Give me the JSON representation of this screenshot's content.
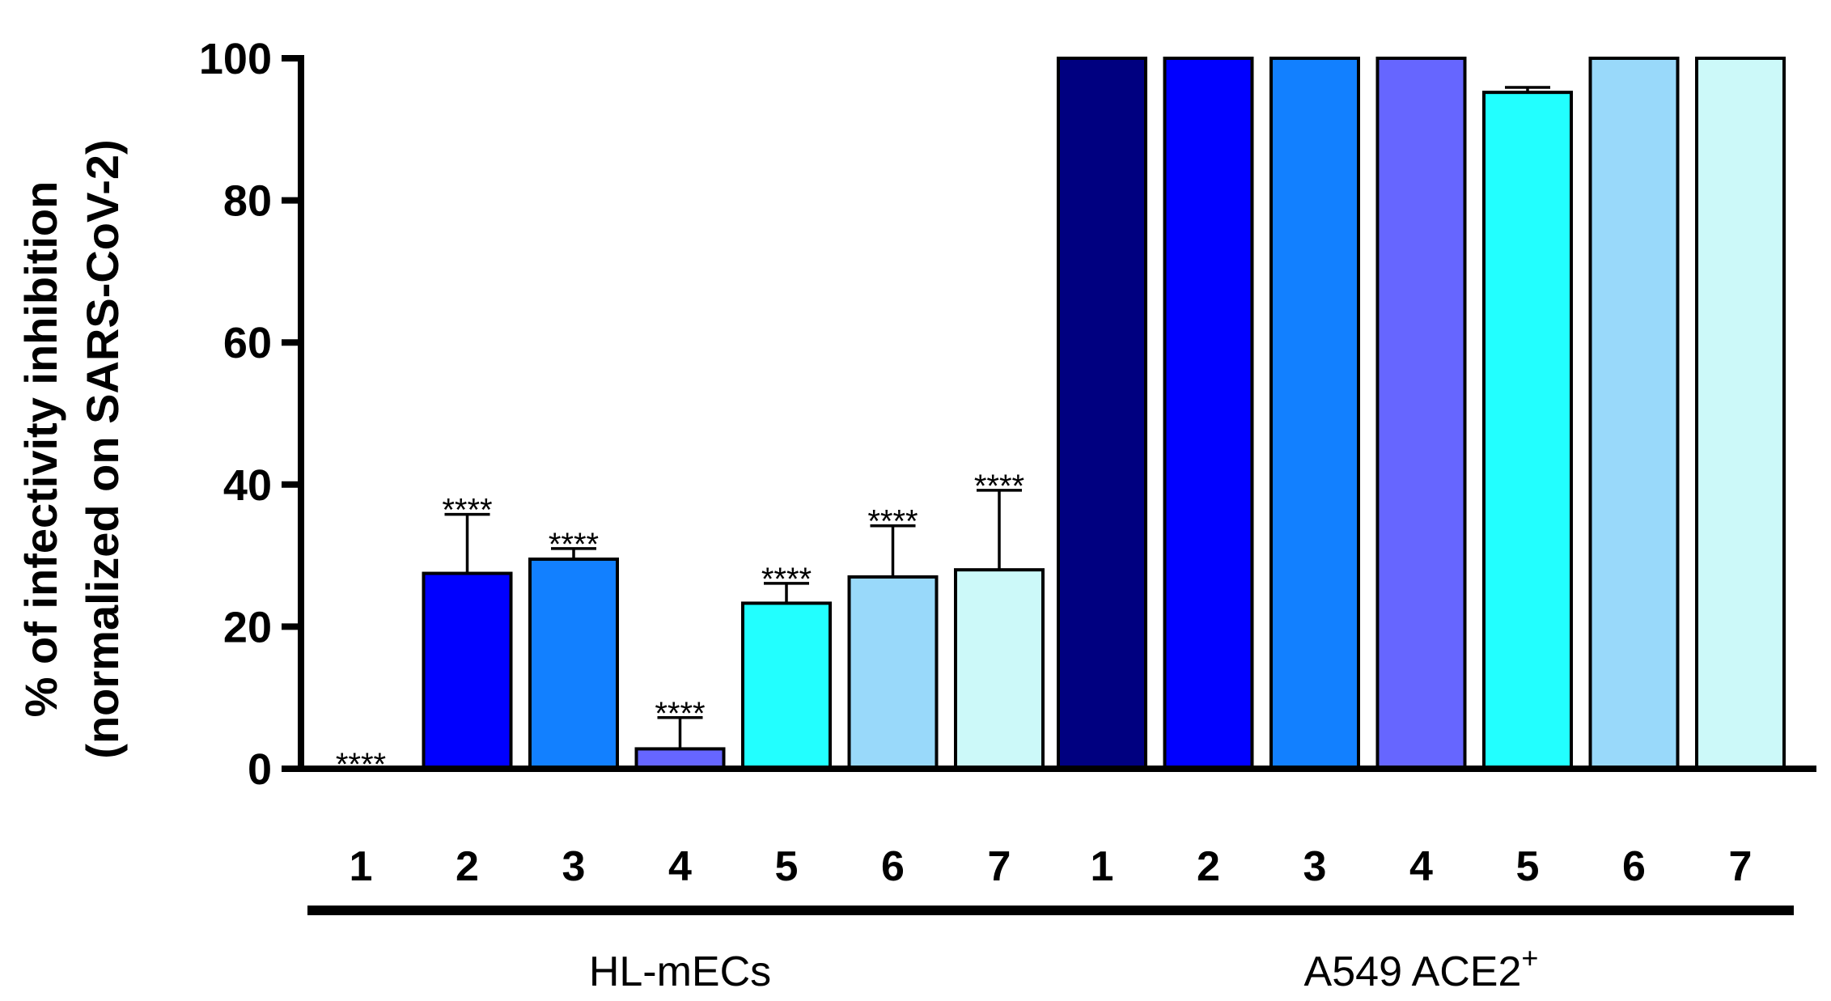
{
  "chart_data": {
    "type": "bar",
    "ylabel_line1": "% of infectivity inhibition",
    "ylabel_line2": "(normalized on SARS-CoV-2)",
    "ylim": [
      0,
      100
    ],
    "yticks": [
      0,
      20,
      40,
      60,
      80,
      100
    ],
    "groups": [
      {
        "label": "HL-mECs",
        "superscript": "",
        "categories": [
          "1",
          "2",
          "3",
          "4",
          "5",
          "6",
          "7"
        ],
        "values": [
          0,
          27.5,
          29.5,
          2.8,
          23.3,
          27.0,
          28.0
        ],
        "errors": [
          0,
          8.3,
          1.5,
          4.4,
          2.8,
          7.2,
          11.2
        ],
        "significance": [
          "****",
          "****",
          "****",
          "****",
          "****",
          "****",
          "****"
        ]
      },
      {
        "label": "A549 ACE2",
        "superscript": "+",
        "categories": [
          "1",
          "2",
          "3",
          "4",
          "5",
          "6",
          "7"
        ],
        "values": [
          100,
          100,
          100,
          100,
          95.2,
          100,
          100
        ],
        "errors": [
          0,
          0,
          0,
          0,
          0.7,
          0,
          0
        ],
        "significance": [
          "",
          "",
          "",
          "",
          "",
          "",
          ""
        ]
      }
    ],
    "colors": [
      "#000080",
      "#0000ff",
      "#1280ff",
      "#6666ff",
      "#22ffff",
      "#99d9fa",
      "#ccf9f9"
    ]
  }
}
